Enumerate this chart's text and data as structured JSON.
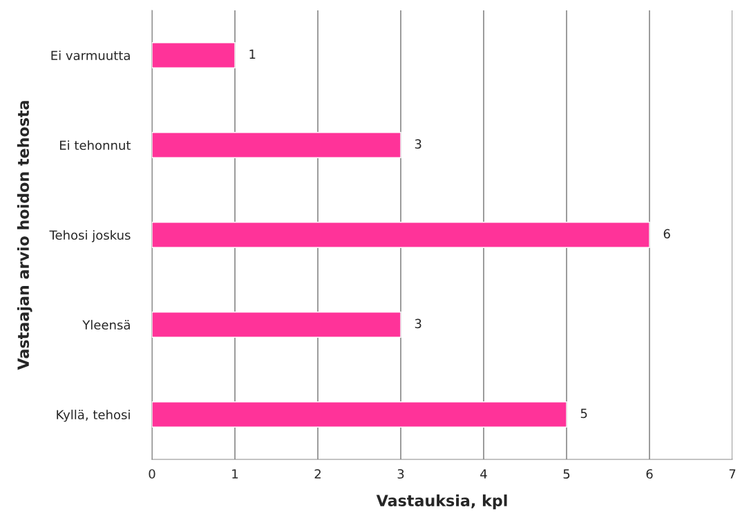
{
  "chart_data": {
    "type": "bar",
    "orientation": "horizontal",
    "xlabel": "Vastauksia, kpl",
    "ylabel": "Vastaajan arvio hoidon tehosta",
    "categories": [
      "Ei varmuutta",
      "Ei tehonnut",
      "Tehosi joskus",
      "Yleensä",
      "Kyllä, tehosi"
    ],
    "values": [
      1,
      3,
      6,
      3,
      5
    ],
    "color": "#ff3399",
    "xlim": [
      0,
      7
    ],
    "xticks": [
      0,
      1,
      2,
      3,
      4,
      5,
      6,
      7
    ],
    "grid": "x",
    "data_labels": true
  }
}
